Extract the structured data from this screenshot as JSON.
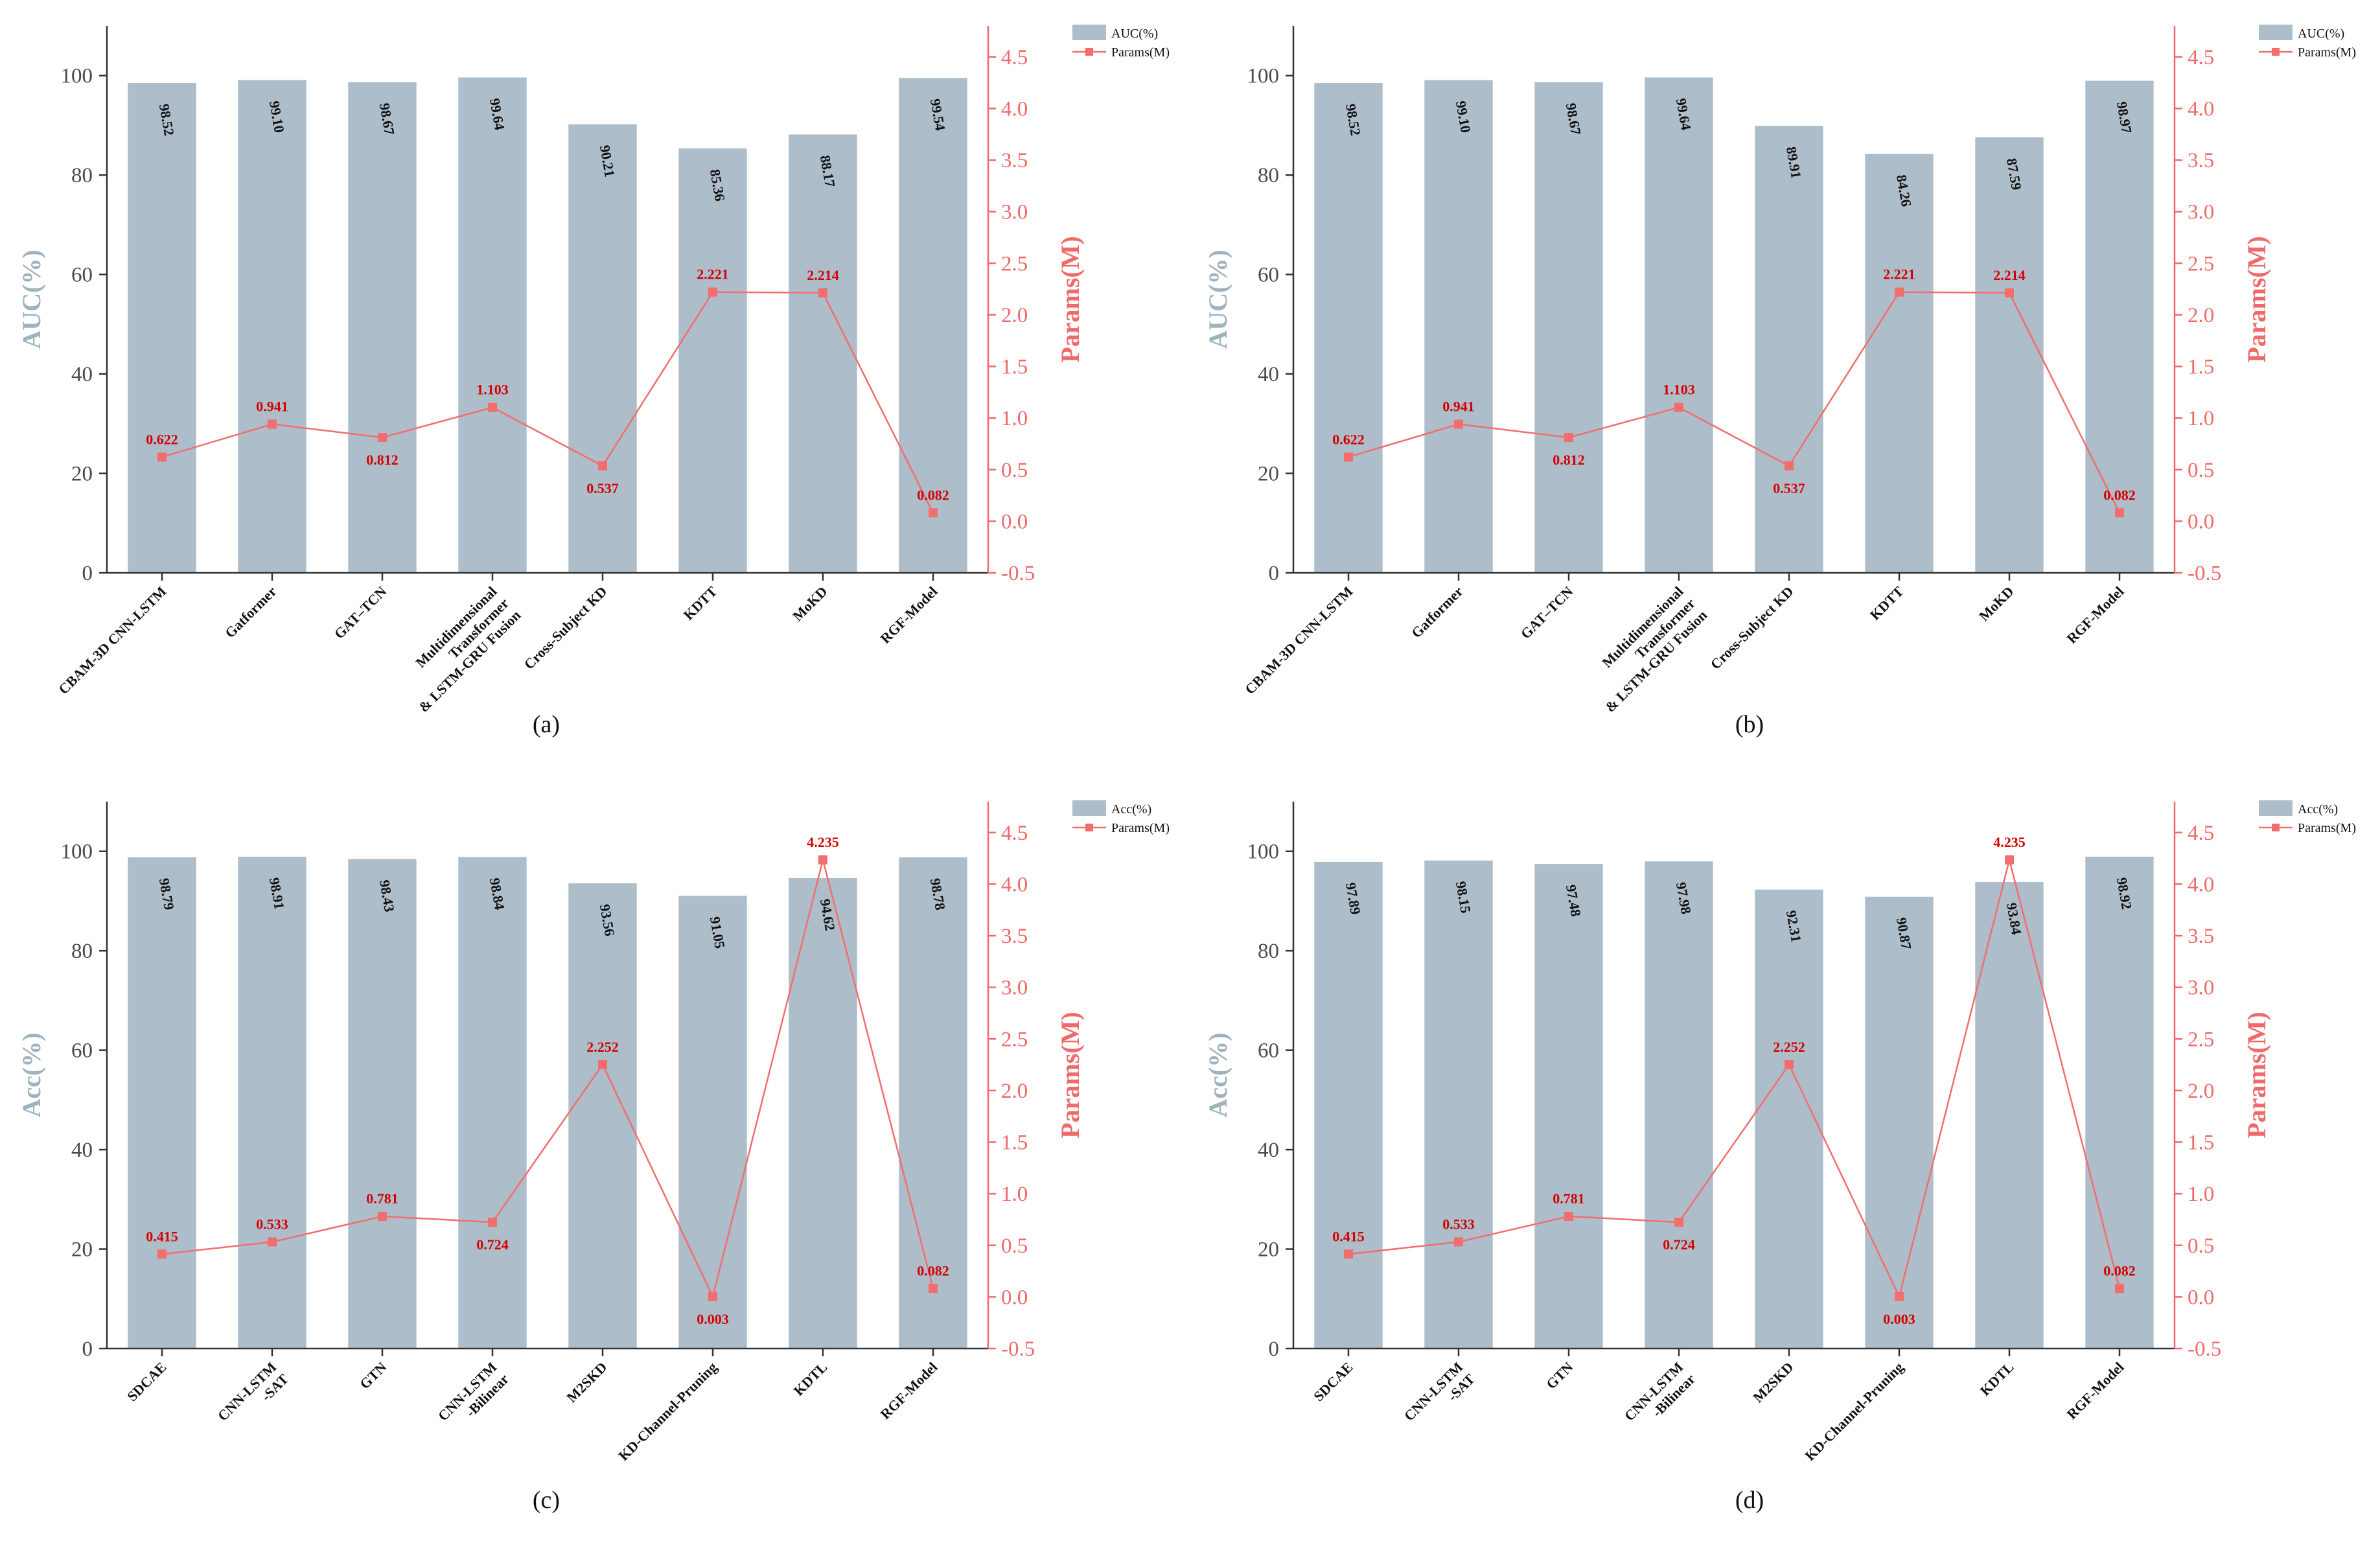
{
  "chart_data": [
    {
      "type": "bar",
      "caption": "(a)",
      "categories": [
        "CBAM-3D CNN-LSTM",
        "Gatformer",
        "GAT–TCN",
        "Multidimensional\nTransformer\n& LSTM-GRU Fusion",
        "Cross-Subject KD",
        "KDTT",
        "MoKD",
        "RGF-Model"
      ],
      "series": [
        {
          "name": "AUC(%)",
          "kind": "bar",
          "axis": "left",
          "color": "#aebdca",
          "values": [
            98.52,
            99.1,
            98.67,
            99.64,
            90.21,
            85.36,
            88.17,
            99.54
          ],
          "labels": [
            "98.52",
            "99.10",
            "98.67",
            "99.64",
            "90.21",
            "85.36",
            "88.17",
            "99.54"
          ]
        },
        {
          "name": "Params(M)",
          "kind": "line",
          "axis": "right",
          "color": "#f26d6d",
          "values": [
            0.622,
            0.941,
            0.812,
            1.103,
            0.537,
            2.221,
            2.214,
            0.082
          ],
          "labels": [
            "0.622",
            "0.941",
            "0.812",
            "1.103",
            "0.537",
            "2.221",
            "2.214",
            "0.082"
          ]
        }
      ],
      "ylabel": "AUC(%)",
      "ylabel_right": "Params(M)",
      "ylim": [
        0,
        110
      ],
      "ylim_right": [
        -0.5,
        4.8
      ],
      "yticks": [
        "0",
        "20",
        "40",
        "60",
        "80",
        "100"
      ],
      "yticks_right": [
        "-0.5",
        "0.0",
        "0.5",
        "1.0",
        "1.5",
        "2.0",
        "2.5",
        "3.0",
        "3.5",
        "4.0",
        "4.5"
      ],
      "legend": "top-right"
    },
    {
      "type": "bar",
      "caption": "(b)",
      "categories": [
        "CBAM-3D CNN-LSTM",
        "Gatformer",
        "GAT–TCN",
        "Multidimensional\nTransformer\n& LSTM-GRU Fusion",
        "Cross-Subject KD",
        "KDTT",
        "MoKD",
        "RGF-Model"
      ],
      "series": [
        {
          "name": "AUC(%)",
          "kind": "bar",
          "axis": "left",
          "color": "#aebdca",
          "values": [
            98.52,
            99.1,
            98.67,
            99.64,
            89.91,
            84.26,
            87.59,
            98.97
          ],
          "labels": [
            "98.52",
            "99.10",
            "98.67",
            "99.64",
            "89.91",
            "84.26",
            "87.59",
            "98.97"
          ]
        },
        {
          "name": "Params(M)",
          "kind": "line",
          "axis": "right",
          "color": "#f26d6d",
          "values": [
            0.622,
            0.941,
            0.812,
            1.103,
            0.537,
            2.221,
            2.214,
            0.082
          ],
          "labels": [
            "0.622",
            "0.941",
            "0.812",
            "1.103",
            "0.537",
            "2.221",
            "2.214",
            "0.082"
          ]
        }
      ],
      "ylabel": "AUC(%)",
      "ylabel_right": "Params(M)",
      "ylim": [
        0,
        110
      ],
      "ylim_right": [
        -0.5,
        4.8
      ],
      "yticks": [
        "0",
        "20",
        "40",
        "60",
        "80",
        "100"
      ],
      "yticks_right": [
        "-0.5",
        "0.0",
        "0.5",
        "1.0",
        "1.5",
        "2.0",
        "2.5",
        "3.0",
        "3.5",
        "4.0",
        "4.5"
      ],
      "legend": "top-right"
    },
    {
      "type": "bar",
      "caption": "(c)",
      "categories": [
        "SDCAE",
        "CNN-LSTM\n-SAT",
        "GTN",
        "CNN-LSTM\n-Bilinear",
        "M2SKD",
        "KD-Channel-Pruning",
        "KDTL",
        "RGF-Model"
      ],
      "series": [
        {
          "name": "Acc(%)",
          "kind": "bar",
          "axis": "left",
          "color": "#aebdca",
          "values": [
            98.79,
            98.91,
            98.43,
            98.84,
            93.56,
            91.05,
            94.62,
            98.78
          ],
          "labels": [
            "98.79",
            "98.91",
            "98.43",
            "98.84",
            "93.56",
            "91.05",
            "94.62",
            "98.78"
          ]
        },
        {
          "name": "Params(M)",
          "kind": "line",
          "axis": "right",
          "color": "#f26d6d",
          "values": [
            0.415,
            0.533,
            0.781,
            0.724,
            2.252,
            0.003,
            4.235,
            0.082
          ],
          "labels": [
            "0.415",
            "0.533",
            "0.781",
            "0.724",
            "2.252",
            "0.003",
            "4.235",
            "0.082"
          ]
        }
      ],
      "ylabel": "Acc(%)",
      "ylabel_right": "Params(M)",
      "ylim": [
        0,
        110
      ],
      "ylim_right": [
        -0.5,
        4.8
      ],
      "yticks": [
        "0",
        "20",
        "40",
        "60",
        "80",
        "100"
      ],
      "yticks_right": [
        "-0.5",
        "0.0",
        "0.5",
        "1.0",
        "1.5",
        "2.0",
        "2.5",
        "3.0",
        "3.5",
        "4.0",
        "4.5"
      ],
      "legend": "top-right"
    },
    {
      "type": "bar",
      "caption": "(d)",
      "categories": [
        "SDCAE",
        "CNN-LSTM\n-SAT",
        "GTN",
        "CNN-LSTM\n-Bilinear",
        "M2SKD",
        "KD-Channel-Pruning",
        "KDTL",
        "RGF-Model"
      ],
      "series": [
        {
          "name": "Acc(%)",
          "kind": "bar",
          "axis": "left",
          "color": "#aebdca",
          "values": [
            97.89,
            98.15,
            97.48,
            97.98,
            92.31,
            90.87,
            93.84,
            98.92
          ],
          "labels": [
            "97.89",
            "98.15",
            "97.48",
            "97.98",
            "92.31",
            "90.87",
            "93.84",
            "98.92"
          ]
        },
        {
          "name": "Params(M)",
          "kind": "line",
          "axis": "right",
          "color": "#f26d6d",
          "values": [
            0.415,
            0.533,
            0.781,
            0.724,
            2.252,
            0.003,
            4.235,
            0.082
          ],
          "labels": [
            "0.415",
            "0.533",
            "0.781",
            "0.724",
            "2.252",
            "0.003",
            "4.235",
            "0.082"
          ]
        }
      ],
      "ylabel": "Acc(%)",
      "ylabel_right": "Params(M)",
      "ylim": [
        0,
        110
      ],
      "ylim_right": [
        -0.5,
        4.8
      ],
      "yticks": [
        "0",
        "20",
        "40",
        "60",
        "80",
        "100"
      ],
      "yticks_right": [
        "-0.5",
        "0.0",
        "0.5",
        "1.0",
        "1.5",
        "2.0",
        "2.5",
        "3.0",
        "3.5",
        "4.0",
        "4.5"
      ],
      "legend": "top-right"
    }
  ]
}
